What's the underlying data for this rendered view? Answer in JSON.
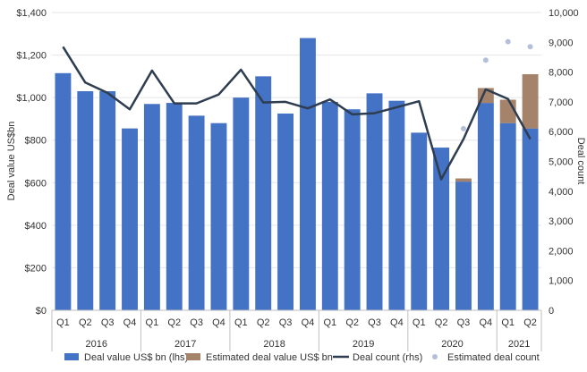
{
  "chart_data": {
    "type": "bar",
    "ylabel_left": "Deal value US$bn",
    "ylabel_right": "Deal count",
    "left_axis": {
      "min": 0,
      "max": 1400,
      "ticks": [
        0,
        200,
        400,
        600,
        800,
        1000,
        1200,
        1400
      ],
      "tick_labels": [
        "$0",
        "$200",
        "$400",
        "$600",
        "$800",
        "$1,000",
        "$1,200",
        "$1,400"
      ]
    },
    "right_axis": {
      "min": 0,
      "max": 10000,
      "ticks": [
        0,
        1000,
        2000,
        3000,
        4000,
        5000,
        6000,
        7000,
        8000,
        9000,
        10000
      ],
      "tick_labels": [
        "0",
        "1,000",
        "2,000",
        "3,000",
        "4,000",
        "5,000",
        "6,000",
        "7,000",
        "8,000",
        "9,000",
        "10,000"
      ]
    },
    "categories": [
      "Q1",
      "Q2",
      "Q3",
      "Q4",
      "Q1",
      "Q2",
      "Q3",
      "Q4",
      "Q1",
      "Q2",
      "Q3",
      "Q4",
      "Q1",
      "Q2",
      "Q3",
      "Q4",
      "Q1",
      "Q2",
      "Q3",
      "Q4",
      "Q1",
      "Q2"
    ],
    "years": [
      {
        "label": "2016",
        "count": 4
      },
      {
        "label": "2017",
        "count": 4
      },
      {
        "label": "2018",
        "count": 4
      },
      {
        "label": "2019",
        "count": 4
      },
      {
        "label": "2020",
        "count": 4
      },
      {
        "label": "2021",
        "count": 2
      }
    ],
    "series": [
      {
        "name": "Deal value US$ bn (lhs)",
        "kind": "bar",
        "color": "#4472c4",
        "values": [
          1115,
          1030,
          1030,
          855,
          970,
          975,
          915,
          880,
          1000,
          1100,
          925,
          1280,
          980,
          945,
          1020,
          985,
          835,
          765,
          605,
          975,
          880,
          855
        ]
      },
      {
        "name": "Estimated deal value US$ bn",
        "kind": "bar-stack",
        "color": "#a5826a",
        "values": [
          0,
          0,
          0,
          0,
          0,
          0,
          0,
          0,
          0,
          0,
          0,
          0,
          0,
          0,
          0,
          0,
          0,
          0,
          15,
          70,
          110,
          255
        ]
      },
      {
        "name": "Deal count (rhs)",
        "kind": "line",
        "color": "#2e3d4f",
        "values": [
          8850,
          7650,
          7300,
          6750,
          8050,
          6950,
          6950,
          7250,
          8080,
          6980,
          7000,
          6780,
          7080,
          6580,
          6620,
          6820,
          7020,
          4400,
          5750,
          7420,
          7100,
          5750
        ]
      },
      {
        "name": "Estimated deal count",
        "kind": "points",
        "color": "#b4c0da",
        "values": [
          null,
          null,
          null,
          null,
          null,
          null,
          null,
          null,
          null,
          null,
          null,
          null,
          null,
          null,
          null,
          null,
          null,
          null,
          6100,
          8400,
          9020,
          8850
        ]
      }
    ]
  }
}
